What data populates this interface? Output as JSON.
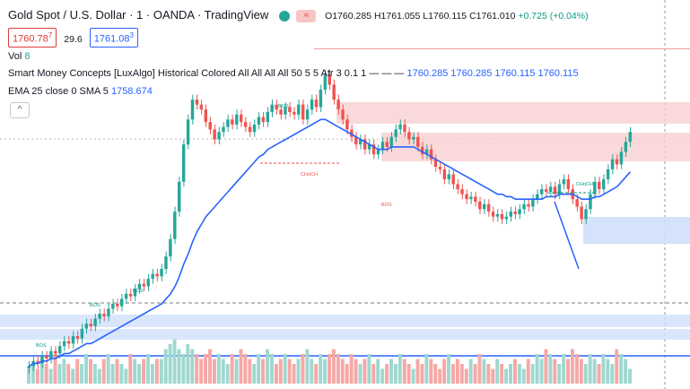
{
  "header": {
    "symbol_title": "Gold Spot / U.S. Dollar · 1 · OANDA · TradingView",
    "ohlc": {
      "open": "O1760.285",
      "high": "H1761.055",
      "low": "L1760.115",
      "close": "C1761.010",
      "change": "+0.725 (+0.04%)"
    },
    "indicator_button_label": "≈"
  },
  "quote": {
    "sell": "1760.78",
    "sell_sup": "7",
    "spread": "29.6",
    "buy": "1761.08",
    "buy_sup": "3"
  },
  "indicators": {
    "volume_label": "Vol",
    "volume_value": "8",
    "smc_label": "Smart Money Concepts [LuxAlgo] Historical Colored All All All All 50 5 5 Atr 3 0.1 1 — — —",
    "smc_values": "1760.285  1760.285  1760.115  1760.115",
    "ema_label": "EMA 25 close 0 SMA 5",
    "ema_value": "1758.674",
    "collapse_icon": "^"
  },
  "chart_data": {
    "type": "candlestick",
    "labels": [
      "BOS",
      "BOS",
      "BOS",
      "BOS",
      "CHoCH",
      "BOS",
      "CHoCH"
    ],
    "colors": {
      "up": "#26a69a",
      "down": "#ef5350",
      "ema": "#2962ff",
      "zone_red": "#f8d0d0",
      "zone_blue": "#cfe0fb",
      "volume_up": "#9fd8d0",
      "volume_down": "#f6a8a6"
    },
    "closes": [
      1701,
      1703,
      1702,
      1705,
      1704,
      1707,
      1706,
      1709,
      1711,
      1710,
      1713,
      1712,
      1716,
      1718,
      1717,
      1720,
      1722,
      1721,
      1724,
      1726,
      1725,
      1728,
      1730,
      1729,
      1732,
      1734,
      1733,
      1736,
      1738,
      1737,
      1740,
      1745,
      1752,
      1763,
      1775,
      1790,
      1800,
      1808,
      1806,
      1804,
      1799,
      1796,
      1792,
      1795,
      1797,
      1800,
      1798,
      1802,
      1799,
      1797,
      1795,
      1798,
      1801,
      1799,
      1803,
      1806,
      1804,
      1802,
      1805,
      1803,
      1802,
      1806,
      1800,
      1804,
      1808,
      1805,
      1812,
      1818,
      1814,
      1808,
      1804,
      1800,
      1796,
      1793,
      1790,
      1792,
      1788,
      1790,
      1786,
      1788,
      1791,
      1789,
      1793,
      1796,
      1798,
      1795,
      1792,
      1793,
      1789,
      1786,
      1788,
      1784,
      1781,
      1780,
      1776,
      1778,
      1774,
      1772,
      1770,
      1768,
      1769,
      1767,
      1764,
      1766,
      1763,
      1761,
      1762,
      1760,
      1761,
      1763,
      1762,
      1764,
      1766,
      1765,
      1768,
      1770,
      1772,
      1771,
      1773,
      1770,
      1774,
      1776,
      1772,
      1768,
      1765,
      1760,
      1764,
      1770,
      1775,
      1772,
      1776,
      1780,
      1784,
      1782,
      1787,
      1791,
      1795
    ],
    "ema_25": [
      1701,
      1702,
      1702,
      1703,
      1703,
      1704,
      1704,
      1705,
      1706,
      1706,
      1707,
      1708,
      1709,
      1710,
      1710,
      1711,
      1712,
      1713,
      1714,
      1715,
      1716,
      1717,
      1718,
      1719,
      1720,
      1721,
      1722,
      1723,
      1724,
      1725,
      1726,
      1728,
      1730,
      1733,
      1737,
      1742,
      1746,
      1751,
      1755,
      1758,
      1761,
      1763,
      1765,
      1767,
      1769,
      1771,
      1773,
      1775,
      1777,
      1779,
      1781,
      1783,
      1785,
      1786,
      1788,
      1789,
      1790,
      1791,
      1792,
      1793,
      1794,
      1795,
      1796,
      1797,
      1798,
      1799,
      1800,
      1800,
      1799,
      1798,
      1797,
      1796,
      1795,
      1794,
      1793,
      1792,
      1791,
      1790,
      1789,
      1788,
      1788,
      1788,
      1789,
      1789,
      1789,
      1789,
      1789,
      1789,
      1788,
      1787,
      1786,
      1785,
      1784,
      1783,
      1782,
      1781,
      1780,
      1779,
      1778,
      1777,
      1776,
      1775,
      1774,
      1773,
      1772,
      1771,
      1770,
      1770,
      1769,
      1769,
      1768,
      1768,
      1768,
      1768,
      1768,
      1768,
      1768,
      1769,
      1769,
      1769,
      1770,
      1770,
      1770,
      1770,
      1769,
      1768,
      1768,
      1768,
      1769,
      1769,
      1770,
      1771,
      1772,
      1773,
      1775,
      1777,
      1779
    ],
    "volumes": [
      3,
      4,
      3,
      5,
      4,
      3,
      6,
      4,
      5,
      4,
      3,
      5,
      4,
      6,
      5,
      4,
      3,
      5,
      6,
      4,
      5,
      4,
      3,
      6,
      5,
      4,
      5,
      6,
      4,
      5,
      5,
      7,
      8,
      9,
      7,
      6,
      8,
      7,
      6,
      5,
      6,
      7,
      5,
      6,
      5,
      4,
      6,
      5,
      7,
      6,
      5,
      4,
      6,
      5,
      7,
      6,
      4,
      5,
      6,
      5,
      4,
      5,
      6,
      7,
      5,
      4,
      6,
      5,
      6,
      7,
      6,
      5,
      4,
      6,
      5,
      4,
      5,
      6,
      4,
      5,
      3,
      4,
      5,
      4,
      6,
      5,
      4,
      3,
      5,
      4,
      6,
      5,
      4,
      3,
      5,
      6,
      4,
      5,
      4,
      3,
      5,
      4,
      6,
      5,
      4,
      3,
      5,
      4,
      3,
      4,
      5,
      4,
      3,
      5,
      4,
      6,
      5,
      7,
      6,
      5,
      4,
      6,
      5,
      7,
      6,
      5,
      4,
      6,
      5,
      4,
      6,
      5,
      4,
      7,
      6,
      5,
      3
    ],
    "ylim": [
      1695,
      1830
    ]
  }
}
